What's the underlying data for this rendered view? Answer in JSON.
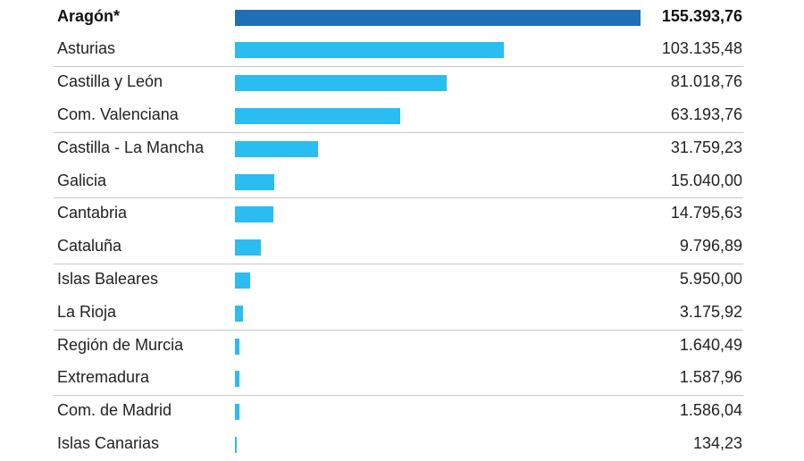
{
  "chart_data": {
    "type": "bar",
    "orientation": "horizontal",
    "categories": [
      "Aragón*",
      "Asturias",
      "Castilla y León",
      "Com. Valenciana",
      "Castilla - La Mancha",
      "Galicia",
      "Cantabria",
      "Cataluña",
      "Islas Baleares",
      "La Rioja",
      "Región de Murcia",
      "Extremadura",
      "Com. de Madrid",
      "Islas Canarias"
    ],
    "values": [
      155393.76,
      103135.48,
      81018.76,
      63193.76,
      31759.23,
      15040.0,
      14795.63,
      9796.89,
      5950.0,
      3175.92,
      1640.49,
      1587.96,
      1586.04,
      134.23
    ],
    "value_labels": [
      "155.393,76",
      "103.135,48",
      "81.018,76",
      "63.193,76",
      "31.759,23",
      "15.040,00",
      "14.795,63",
      "9.796,89",
      "5.950,00",
      "3.175,92",
      "1.640,49",
      "1.587,96",
      "1.586,04",
      "134,23"
    ],
    "highlight_index": 0,
    "xlim": [
      0,
      155393.76
    ],
    "grid": false,
    "colors": {
      "highlight": "#1f6fb4",
      "default": "#29bdf2",
      "divider": "#c8c8c8",
      "text": "#222222"
    }
  }
}
